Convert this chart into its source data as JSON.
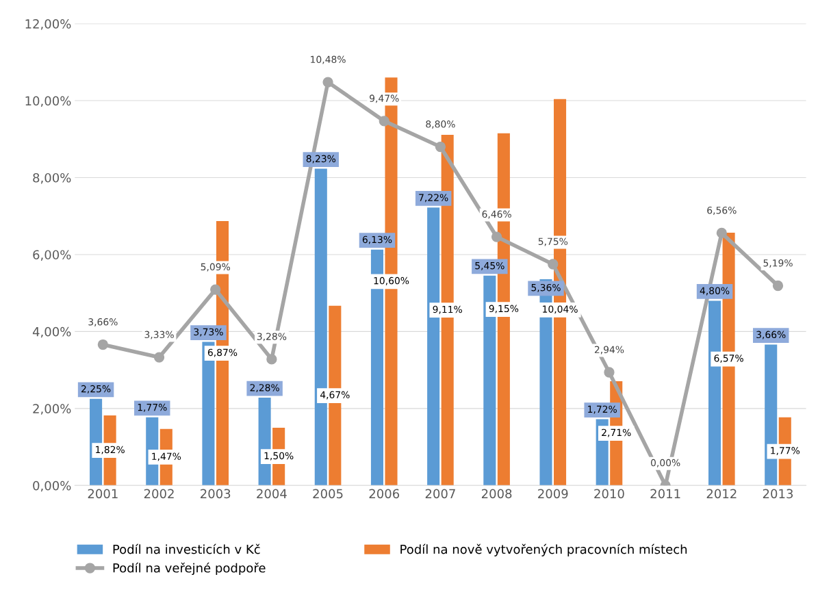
{
  "chart_data": {
    "type": "bar",
    "categories": [
      "2001",
      "2002",
      "2003",
      "2004",
      "2005",
      "2006",
      "2007",
      "2008",
      "2009",
      "2010",
      "2011",
      "2012",
      "2013"
    ],
    "series": [
      {
        "name": "Podíl na investicích v Kč",
        "type": "bar",
        "color": "#5b9bd5",
        "values": [
          2.25,
          1.77,
          3.73,
          2.28,
          8.23,
          6.13,
          7.22,
          5.45,
          5.36,
          1.72,
          null,
          4.8,
          3.66
        ],
        "value_labels": [
          "2,25%",
          "1,77%",
          "3,73%",
          "2,28%",
          "8,23%",
          "6,13%",
          "7,22%",
          "5,45%",
          "5,36%",
          "1,72%",
          null,
          "4,80%",
          "3,66%"
        ]
      },
      {
        "name": "Podíl na nově vytvořených pracovních místech",
        "type": "bar",
        "color": "#ed7d31",
        "values": [
          1.82,
          1.47,
          6.87,
          1.5,
          4.67,
          10.6,
          9.11,
          9.15,
          10.04,
          2.71,
          null,
          6.57,
          1.77
        ],
        "value_labels": [
          "1,82%",
          "1,47%",
          "6,87%",
          "1,50%",
          "4,67%",
          "10,60%",
          "9,11%",
          "9,15%",
          "10,04%",
          "2,71%",
          null,
          "6,57%",
          "1,77%"
        ]
      },
      {
        "name": "Podíl na veřejné podpoře",
        "type": "line",
        "color": "#a5a5a5",
        "marker": "circle",
        "values": [
          3.66,
          3.33,
          5.09,
          3.28,
          10.48,
          9.47,
          8.8,
          6.46,
          5.75,
          2.94,
          0.0,
          6.56,
          5.19
        ],
        "value_labels": [
          "3,66%",
          "3,33%",
          "5,09%",
          "3,28%",
          "10,48%",
          "9,47%",
          "8,80%",
          "6,46%",
          "5,75%",
          "2,94%",
          "0,00%",
          "6,56%",
          "5,19%"
        ]
      }
    ],
    "ylim": [
      0,
      12
    ],
    "yticks": [
      {
        "value": 0,
        "label": "0,00%"
      },
      {
        "value": 2,
        "label": "2,00%"
      },
      {
        "value": 4,
        "label": "4,00%"
      },
      {
        "value": 6,
        "label": "6,00%"
      },
      {
        "value": 8,
        "label": "8,00%"
      },
      {
        "value": 10,
        "label": "10,00%"
      },
      {
        "value": 12,
        "label": "12,00%"
      }
    ],
    "grid": "y",
    "legend": "bottom"
  }
}
